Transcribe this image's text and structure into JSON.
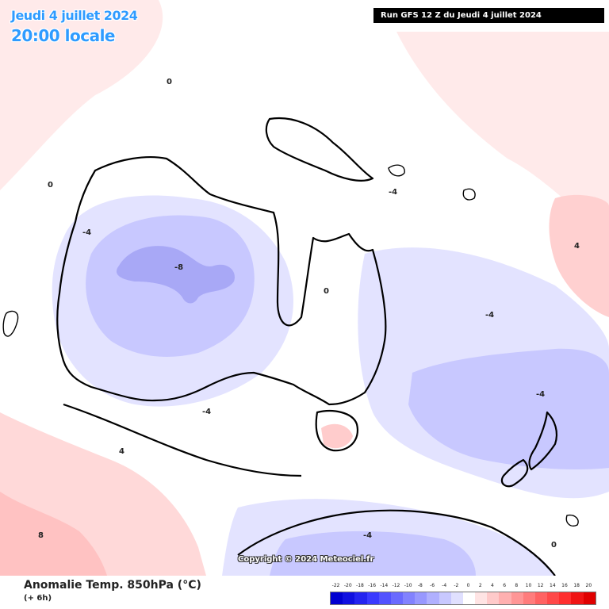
{
  "header": {
    "date_line": "Jeudi 4 juillet 2024",
    "time_line": "20:00 locale",
    "run_info": "Run GFS 12 Z du Jeudi 4 juillet 2024"
  },
  "footer": {
    "variable_title": "Anomalie Temp. 850hPa (°C)",
    "lead_time": "(+ 6h)",
    "copyright": "Copyright © 2024 Meteociel.fr"
  },
  "legend": {
    "labels": [
      "-22",
      "-20",
      "-18",
      "-16",
      "-14",
      "-12",
      "-10",
      "-8",
      "-6",
      "-4",
      "-2",
      "0",
      "2",
      "4",
      "6",
      "8",
      "10",
      "12",
      "14",
      "16",
      "18",
      "20"
    ],
    "colors": [
      "#0000d0",
      "#1010e0",
      "#2424f0",
      "#3a3aff",
      "#5252ff",
      "#6a6aff",
      "#8282ff",
      "#9898ff",
      "#b0b0ff",
      "#c8c8ff",
      "#e0e0ff",
      "#ffffff",
      "#ffe4e4",
      "#ffcaca",
      "#ffb0b0",
      "#ff9696",
      "#ff7c7c",
      "#ff6262",
      "#ff4848",
      "#ff2e2e",
      "#f01414",
      "#e00000"
    ]
  },
  "contour_labels": [
    "0",
    "-4",
    "-8",
    "4",
    "8"
  ],
  "colors": {
    "weak_warm": "#ffe6e6",
    "warm": "#ffcccc",
    "weak_cold": "#e3e3ff",
    "cold": "#c8c8ff",
    "strong_cold": "#a8a8f6",
    "coastline": "#000000",
    "date_text": "#2f9bff"
  }
}
